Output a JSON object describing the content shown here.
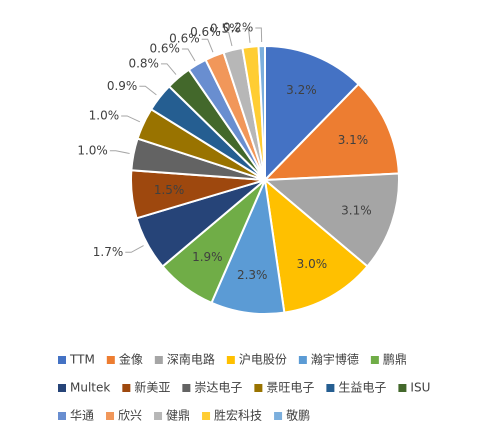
{
  "chart_data": {
    "type": "pie",
    "categories": [
      "TTM",
      "金像",
      "深南电路",
      "沪电股份",
      "瀚宇博德",
      "鹏鼎",
      "Multek",
      "新美亚",
      "崇达电子",
      "景旺电子",
      "生益电子",
      "ISU",
      "华通",
      "欣兴",
      "健鼎",
      "胜宏科技",
      "敬鹏"
    ],
    "values": [
      3.2,
      3.1,
      3.1,
      3.0,
      2.3,
      1.9,
      1.7,
      1.5,
      1.0,
      1.0,
      0.9,
      0.8,
      0.6,
      0.6,
      0.6,
      0.5,
      0.2
    ],
    "value_labels": [
      "3.2%",
      "3.1%",
      "3.1%",
      "3.0%",
      "2.3%",
      "1.9%",
      "1.7%",
      "1.5%",
      "1.0%",
      "1.0%",
      "0.9%",
      "0.8%",
      "0.6%",
      "0.6%",
      "0.6%",
      "0.5%",
      "0.2%"
    ],
    "colors": [
      "#4472c4",
      "#ed7d31",
      "#a5a5a5",
      "#ffc000",
      "#5b9bd5",
      "#70ad47",
      "#264478",
      "#9e480e",
      "#636363",
      "#997300",
      "#255e91",
      "#43682b",
      "#698ed0",
      "#f1975a",
      "#b7b7b7",
      "#ffcd33",
      "#7cafdd"
    ],
    "legend": "bottom"
  }
}
